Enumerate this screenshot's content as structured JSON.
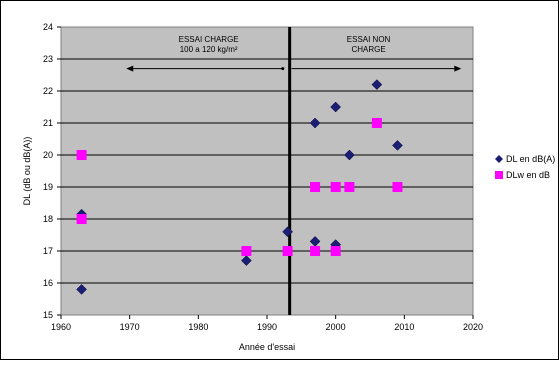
{
  "chart_data": {
    "type": "scatter",
    "xlabel": "Année d'essai",
    "ylabel": "DL (dB ou dB(A))",
    "xlim": [
      1960,
      2020
    ],
    "ylim": [
      15,
      24
    ],
    "xticks": [
      1960,
      1970,
      1980,
      1990,
      2000,
      2010,
      2020
    ],
    "yticks": [
      15,
      16,
      17,
      18,
      19,
      20,
      21,
      22,
      23,
      24
    ],
    "grid": "horizontal",
    "plot_background": "#c0c0c0",
    "legend_position": "right",
    "vertical_line_x": 1993.3,
    "annotations": {
      "left_title": "ESSAI CHARGE",
      "left_subtitle": "100 a 120 kg/m²",
      "right_title": "ESSAI NON",
      "right_subtitle": "CHARGE"
    },
    "series": [
      {
        "name": "DL en dB(A)",
        "marker": "diamond",
        "color": "#1b1f73",
        "points": [
          {
            "x": 1963,
            "y": 15.8
          },
          {
            "x": 1963,
            "y": 18.15
          },
          {
            "x": 1987,
            "y": 16.7
          },
          {
            "x": 1993,
            "y": 17.6
          },
          {
            "x": 1997,
            "y": 21.0
          },
          {
            "x": 1997,
            "y": 17.3
          },
          {
            "x": 2000,
            "y": 21.5
          },
          {
            "x": 2000,
            "y": 17.2
          },
          {
            "x": 2002,
            "y": 20.0
          },
          {
            "x": 2006,
            "y": 22.2
          },
          {
            "x": 2009,
            "y": 20.3
          }
        ]
      },
      {
        "name": "DLw en dB",
        "marker": "square",
        "color": "#ff00ff",
        "points": [
          {
            "x": 1963,
            "y": 20.0
          },
          {
            "x": 1963,
            "y": 18.0
          },
          {
            "x": 1987,
            "y": 17.0
          },
          {
            "x": 1993,
            "y": 17.0
          },
          {
            "x": 1997,
            "y": 19.0
          },
          {
            "x": 1997,
            "y": 17.0
          },
          {
            "x": 2000,
            "y": 19.0
          },
          {
            "x": 2000,
            "y": 17.0
          },
          {
            "x": 2002,
            "y": 19.0
          },
          {
            "x": 2006,
            "y": 21.0
          },
          {
            "x": 2009,
            "y": 19.0
          }
        ]
      }
    ]
  }
}
